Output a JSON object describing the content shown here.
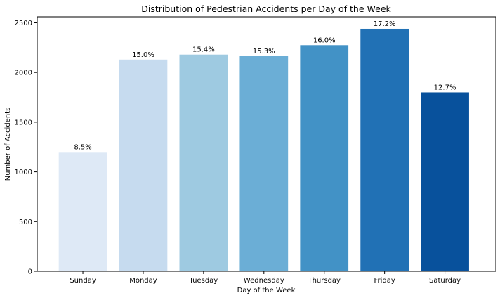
{
  "chart_data": {
    "type": "bar",
    "title": "Distribution of Pedestrian Accidents per Day of the Week",
    "xlabel": "Day of the Week",
    "ylabel": "Number of Accidents",
    "categories": [
      "Sunday",
      "Monday",
      "Tuesday",
      "Wednesday",
      "Thursday",
      "Friday",
      "Saturday"
    ],
    "values": [
      1200,
      2130,
      2180,
      2165,
      2275,
      2440,
      1800
    ],
    "data_labels": [
      "8.5%",
      "15.0%",
      "15.4%",
      "15.3%",
      "16.0%",
      "17.2%",
      "12.7%"
    ],
    "colors": [
      "#dee9f6",
      "#c6dbef",
      "#9ecae1",
      "#6baed6",
      "#4292c6",
      "#2171b5",
      "#08519c"
    ],
    "ylim": [
      0,
      2560
    ],
    "yticks": [
      0,
      500,
      1000,
      1500,
      2000,
      2500
    ],
    "grid": false,
    "legend": "none"
  }
}
